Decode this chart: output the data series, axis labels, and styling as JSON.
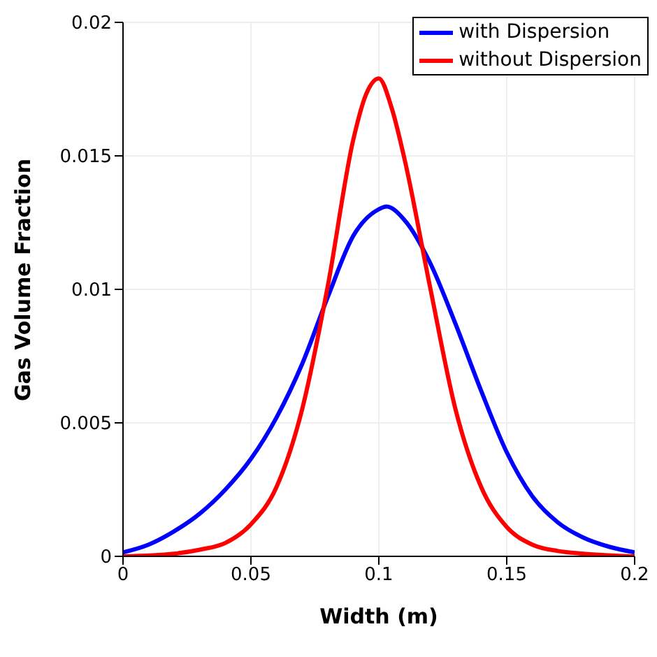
{
  "chart_data": {
    "type": "line",
    "xlabel": "Width (m)",
    "ylabel": "Gas Volume Fraction",
    "xlim": [
      0,
      0.2
    ],
    "xticks": [
      0,
      0.05,
      0.1,
      0.15,
      0.2
    ],
    "ylim": [
      0,
      0.02
    ],
    "yticks": [
      0,
      0.005,
      0.01,
      0.015,
      0.02
    ],
    "grid": true,
    "legend": "top right",
    "marker": "none",
    "line_style": "solid",
    "series": [
      {
        "name": "with Dispersion",
        "color": "#0000ff",
        "x": [
          0,
          0.01,
          0.02,
          0.03,
          0.04,
          0.05,
          0.06,
          0.07,
          0.08,
          0.09,
          0.1,
          0.103,
          0.11,
          0.12,
          0.13,
          0.14,
          0.15,
          0.16,
          0.17,
          0.18,
          0.19,
          0.2
        ],
        "values": [
          0.00015,
          0.00044,
          0.00094,
          0.0016,
          0.0025,
          0.00365,
          0.0052,
          0.0072,
          0.0097,
          0.012,
          0.013,
          0.0131,
          0.0126,
          0.011,
          0.0087,
          0.0062,
          0.0039,
          0.00225,
          0.00127,
          0.0007,
          0.00036,
          0.00015
        ]
      },
      {
        "name": "without Dispersion",
        "color": "#ff0000",
        "x": [
          0,
          0.02,
          0.03,
          0.04,
          0.05,
          0.06,
          0.07,
          0.08,
          0.09,
          0.095,
          0.1,
          0.105,
          0.11,
          0.12,
          0.13,
          0.14,
          0.15,
          0.16,
          0.17,
          0.18,
          0.2
        ],
        "values": [
          0,
          0.0001,
          0.00025,
          0.0005,
          0.0012,
          0.0026,
          0.0055,
          0.0101,
          0.0156,
          0.0173,
          0.0179,
          0.0168,
          0.0149,
          0.0101,
          0.0055,
          0.0026,
          0.0011,
          0.00044,
          0.0002,
          0.0001,
          0
        ]
      }
    ]
  }
}
